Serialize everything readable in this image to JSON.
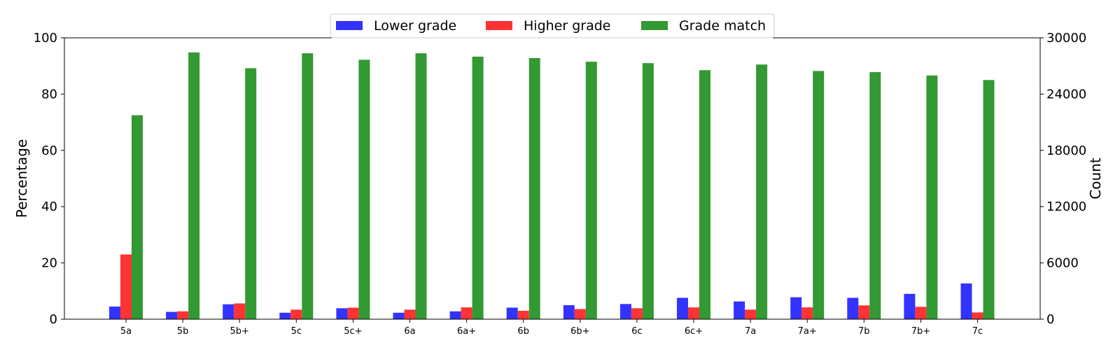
{
  "chart_data": {
    "type": "bar",
    "categories": [
      "5a",
      "5b",
      "5b+",
      "5c",
      "5c+",
      "6a",
      "6a+",
      "6b",
      "6b+",
      "6c",
      "6c+",
      "7a",
      "7a+",
      "7b",
      "7b+",
      "7c"
    ],
    "series": [
      {
        "name": "Lower grade",
        "color": "#3333ff",
        "values": [
          4.5,
          2.6,
          5.3,
          2.3,
          3.9,
          2.3,
          2.8,
          4.1,
          5.0,
          5.4,
          7.6,
          6.3,
          7.8,
          7.6,
          9.0,
          12.7
        ]
      },
      {
        "name": "Higher grade",
        "color": "#ff3333",
        "values": [
          23.0,
          2.8,
          5.6,
          3.4,
          4.1,
          3.4,
          4.2,
          3.0,
          3.6,
          3.9,
          4.2,
          3.4,
          4.2,
          4.9,
          4.4,
          2.4
        ]
      },
      {
        "name": "Grade match",
        "color": "#339933",
        "values": [
          72.5,
          94.8,
          89.2,
          94.5,
          92.2,
          94.5,
          93.3,
          92.8,
          91.5,
          91.0,
          88.5,
          90.5,
          88.2,
          87.8,
          86.6,
          85.0
        ]
      }
    ],
    "ylabel": "Percentage",
    "ylim": [
      0,
      100
    ],
    "yticks": [
      "0",
      "20",
      "40",
      "60",
      "80",
      "100"
    ],
    "y2label": "Count",
    "y2lim": [
      0,
      30000
    ],
    "y2ticks": [
      "0",
      "6000",
      "12000",
      "18000",
      "24000",
      "30000"
    ],
    "legend_position": "top-center",
    "grid": false
  }
}
